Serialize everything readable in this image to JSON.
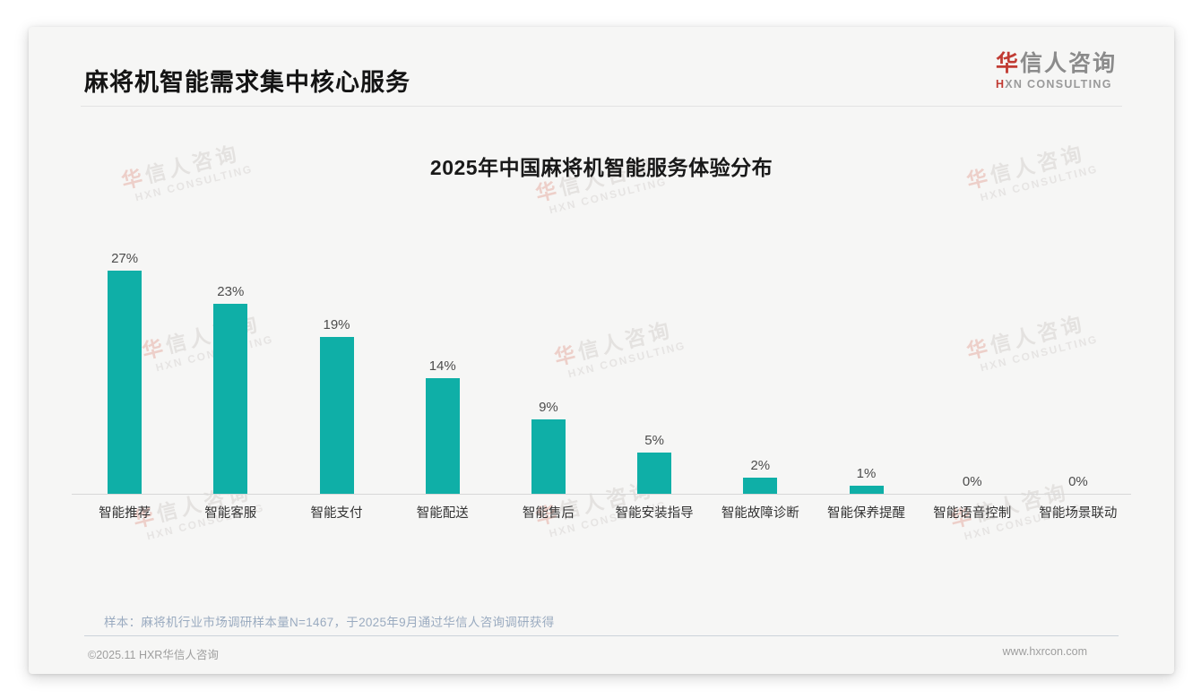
{
  "page": {
    "title": "麻将机智能需求集中核心服务",
    "logo": {
      "brand_accent": "华",
      "brand_rest": "信人咨询",
      "subtitle_accent": "H",
      "subtitle_rest": "XN CONSULTING"
    },
    "note": "样本：麻将机行业市场调研样本量N=1467，于2025年9月通过华信人咨询调研获得",
    "footer_left": "©2025.11 HXR华信人咨询",
    "footer_right": "www.hxrcon.com"
  },
  "watermark": {
    "line1_accent": "华",
    "line1_rest": "信人咨询",
    "line2": "HXN CONSULTING"
  },
  "chart_data": {
    "type": "bar",
    "title": "2025年中国麻将机智能服务体验分布",
    "categories": [
      "智能推荐",
      "智能客服",
      "智能支付",
      "智能配送",
      "智能售后",
      "智能安装指导",
      "智能故障诊断",
      "智能保养提醒",
      "智能语音控制",
      "智能场景联动"
    ],
    "values": [
      27,
      23,
      19,
      14,
      9,
      5,
      2,
      1,
      0,
      0
    ],
    "data_labels": [
      "27%",
      "23%",
      "19%",
      "14%",
      "9%",
      "5%",
      "2%",
      "1%",
      "0%",
      "0%"
    ],
    "unit": "%",
    "bar_color": "#0fafa7",
    "xlabel": "",
    "ylabel": "",
    "ylim": [
      0,
      30
    ],
    "grid": false,
    "legend": false
  }
}
